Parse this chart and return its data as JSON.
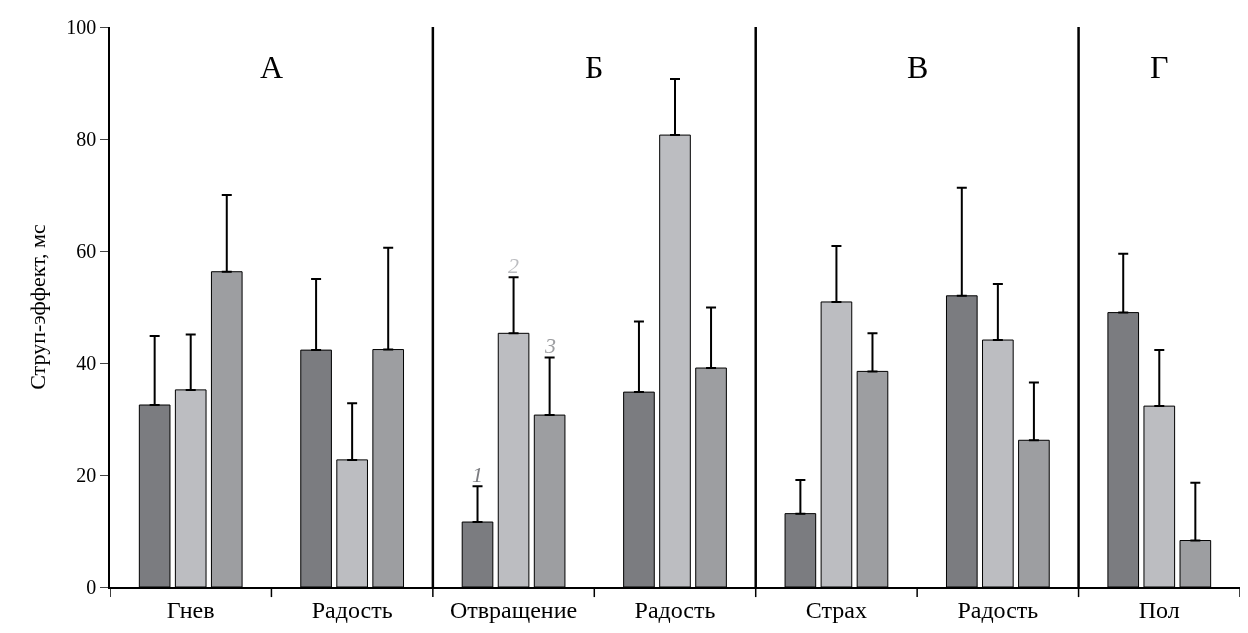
{
  "chart_data": {
    "type": "bar",
    "ylabel": "Струп-эффект, мс",
    "categories": [
      "Гнев",
      "Радость",
      "Отвращение",
      "Радость",
      "Страх",
      "Радость",
      "Пол"
    ],
    "series": [
      {
        "name": "1",
        "color": "#7b7c80",
        "values": [
          32.5,
          42.3,
          11.6,
          34.8,
          13.1,
          52.0,
          49.0
        ],
        "errors": [
          [
            32.5,
            44.8
          ],
          [
            42.3,
            55.0
          ],
          [
            11.6,
            18.0
          ],
          [
            34.8,
            47.4
          ],
          [
            13.1,
            19.1
          ],
          [
            52.0,
            71.3
          ],
          [
            49.0,
            59.5
          ]
        ]
      },
      {
        "name": "2",
        "color": "#bcbdc1",
        "values": [
          35.2,
          22.7,
          45.3,
          80.7,
          50.9,
          44.1,
          32.3
        ],
        "errors": [
          [
            35.2,
            45.1
          ],
          [
            22.7,
            32.8
          ],
          [
            45.3,
            55.3
          ],
          [
            80.7,
            90.7
          ],
          [
            50.9,
            60.9
          ],
          [
            44.1,
            54.1
          ],
          [
            32.3,
            42.3
          ]
        ]
      },
      {
        "name": "3",
        "color": "#9d9ea1",
        "values": [
          56.3,
          42.4,
          30.7,
          39.1,
          38.5,
          26.2,
          8.3
        ],
        "errors": [
          [
            56.3,
            70.0
          ],
          [
            42.4,
            60.6
          ],
          [
            30.7,
            41.0
          ],
          [
            39.1,
            49.9
          ],
          [
            38.5,
            45.3
          ],
          [
            26.2,
            36.5
          ],
          [
            8.3,
            18.6
          ]
        ]
      }
    ],
    "ylim": [
      0,
      100
    ],
    "yticks": [
      0,
      20,
      40,
      60,
      80,
      100
    ],
    "legend": false,
    "annotations": [
      "А",
      "Б",
      "В",
      "Г"
    ]
  }
}
